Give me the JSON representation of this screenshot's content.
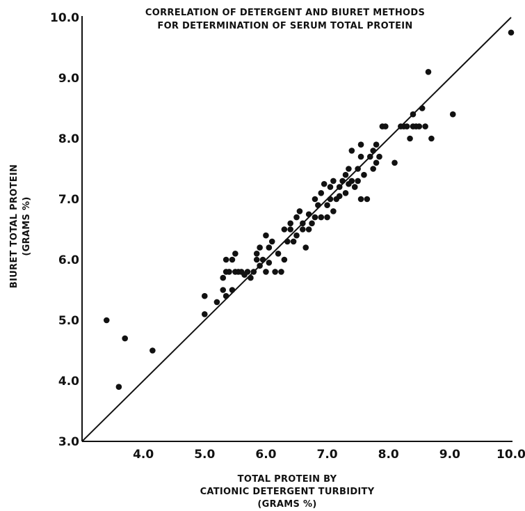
{
  "chart_data": {
    "type": "scatter",
    "title": [
      "CORRELATION OF DETERGENT AND BIURET METHODS",
      "FOR DETERMINATION OF SERUM TOTAL PROTEIN"
    ],
    "xlabel": [
      "TOTAL PROTEIN BY",
      "CATIONIC DETERGENT TURBIDITY",
      "(GRAMS %)"
    ],
    "ylabel": [
      "BIURET TOTAL PROTEIN",
      "(GRAMS %)"
    ],
    "xlim": [
      3.0,
      10.0
    ],
    "ylim": [
      3.0,
      10.0
    ],
    "x_ticks": [
      "4.0",
      "5.0",
      "6.0",
      "7.0",
      "8.0",
      "9.0",
      "10.0"
    ],
    "y_ticks": [
      "3.0",
      "4.0",
      "5.0",
      "6.0",
      "7.0",
      "8.0",
      "9.0",
      "10.0"
    ],
    "x_tick_values": [
      4,
      5,
      6,
      7,
      8,
      9,
      10
    ],
    "y_tick_values": [
      3,
      4,
      5,
      6,
      7,
      8,
      9,
      10
    ],
    "grid": false,
    "identity_line": {
      "x": [
        3.0,
        10.0
      ],
      "y": [
        3.0,
        10.0
      ]
    },
    "points": [
      [
        3.4,
        5.0
      ],
      [
        3.6,
        3.9
      ],
      [
        3.7,
        4.7
      ],
      [
        4.15,
        4.5
      ],
      [
        5.0,
        5.1
      ],
      [
        5.0,
        5.4
      ],
      [
        5.2,
        5.3
      ],
      [
        5.3,
        5.5
      ],
      [
        5.3,
        5.7
      ],
      [
        5.35,
        5.4
      ],
      [
        5.35,
        5.8
      ],
      [
        5.35,
        6.0
      ],
      [
        5.4,
        5.8
      ],
      [
        5.45,
        5.5
      ],
      [
        5.45,
        6.0
      ],
      [
        5.5,
        5.8
      ],
      [
        5.5,
        6.1
      ],
      [
        5.55,
        5.8
      ],
      [
        5.6,
        5.8
      ],
      [
        5.65,
        5.75
      ],
      [
        5.7,
        5.8
      ],
      [
        5.75,
        5.7
      ],
      [
        5.8,
        5.8
      ],
      [
        5.85,
        6.0
      ],
      [
        5.85,
        6.1
      ],
      [
        5.9,
        5.9
      ],
      [
        5.9,
        6.2
      ],
      [
        5.95,
        6.0
      ],
      [
        6.0,
        6.4
      ],
      [
        6.0,
        5.8
      ],
      [
        6.05,
        6.2
      ],
      [
        6.05,
        5.95
      ],
      [
        6.1,
        6.3
      ],
      [
        6.15,
        5.8
      ],
      [
        6.2,
        6.1
      ],
      [
        6.25,
        5.8
      ],
      [
        6.3,
        6.5
      ],
      [
        6.3,
        6.0
      ],
      [
        6.35,
        6.3
      ],
      [
        6.4,
        6.6
      ],
      [
        6.4,
        6.5
      ],
      [
        6.45,
        6.3
      ],
      [
        6.5,
        6.7
      ],
      [
        6.5,
        6.4
      ],
      [
        6.55,
        6.8
      ],
      [
        6.6,
        6.6
      ],
      [
        6.6,
        6.5
      ],
      [
        6.65,
        6.2
      ],
      [
        6.7,
        6.75
      ],
      [
        6.7,
        6.5
      ],
      [
        6.75,
        6.6
      ],
      [
        6.8,
        7.0
      ],
      [
        6.8,
        6.7
      ],
      [
        6.85,
        6.9
      ],
      [
        6.9,
        7.1
      ],
      [
        6.9,
        6.7
      ],
      [
        6.95,
        7.25
      ],
      [
        7.0,
        6.9
      ],
      [
        7.0,
        6.7
      ],
      [
        7.05,
        7.2
      ],
      [
        7.05,
        7.0
      ],
      [
        7.1,
        7.3
      ],
      [
        7.1,
        6.8
      ],
      [
        7.15,
        7.0
      ],
      [
        7.2,
        7.2
      ],
      [
        7.2,
        7.05
      ],
      [
        7.25,
        7.3
      ],
      [
        7.3,
        7.1
      ],
      [
        7.3,
        7.4
      ],
      [
        7.35,
        7.5
      ],
      [
        7.35,
        7.25
      ],
      [
        7.4,
        7.3
      ],
      [
        7.4,
        7.8
      ],
      [
        7.45,
        7.2
      ],
      [
        7.5,
        7.5
      ],
      [
        7.5,
        7.3
      ],
      [
        7.55,
        7.7
      ],
      [
        7.55,
        7.9
      ],
      [
        7.55,
        7.0
      ],
      [
        7.6,
        7.4
      ],
      [
        7.65,
        7.0
      ],
      [
        7.7,
        7.7
      ],
      [
        7.75,
        7.8
      ],
      [
        7.75,
        7.5
      ],
      [
        7.8,
        7.9
      ],
      [
        7.8,
        7.6
      ],
      [
        7.85,
        7.7
      ],
      [
        7.9,
        8.2
      ],
      [
        7.95,
        8.2
      ],
      [
        8.1,
        7.6
      ],
      [
        8.2,
        8.2
      ],
      [
        8.25,
        8.2
      ],
      [
        8.3,
        8.2
      ],
      [
        8.35,
        8.0
      ],
      [
        8.4,
        8.2
      ],
      [
        8.4,
        8.4
      ],
      [
        8.45,
        8.2
      ],
      [
        8.5,
        8.2
      ],
      [
        8.55,
        8.5
      ],
      [
        8.6,
        8.2
      ],
      [
        8.65,
        9.1
      ],
      [
        8.7,
        8.0
      ],
      [
        9.05,
        8.4
      ],
      [
        10.0,
        9.75
      ]
    ]
  }
}
